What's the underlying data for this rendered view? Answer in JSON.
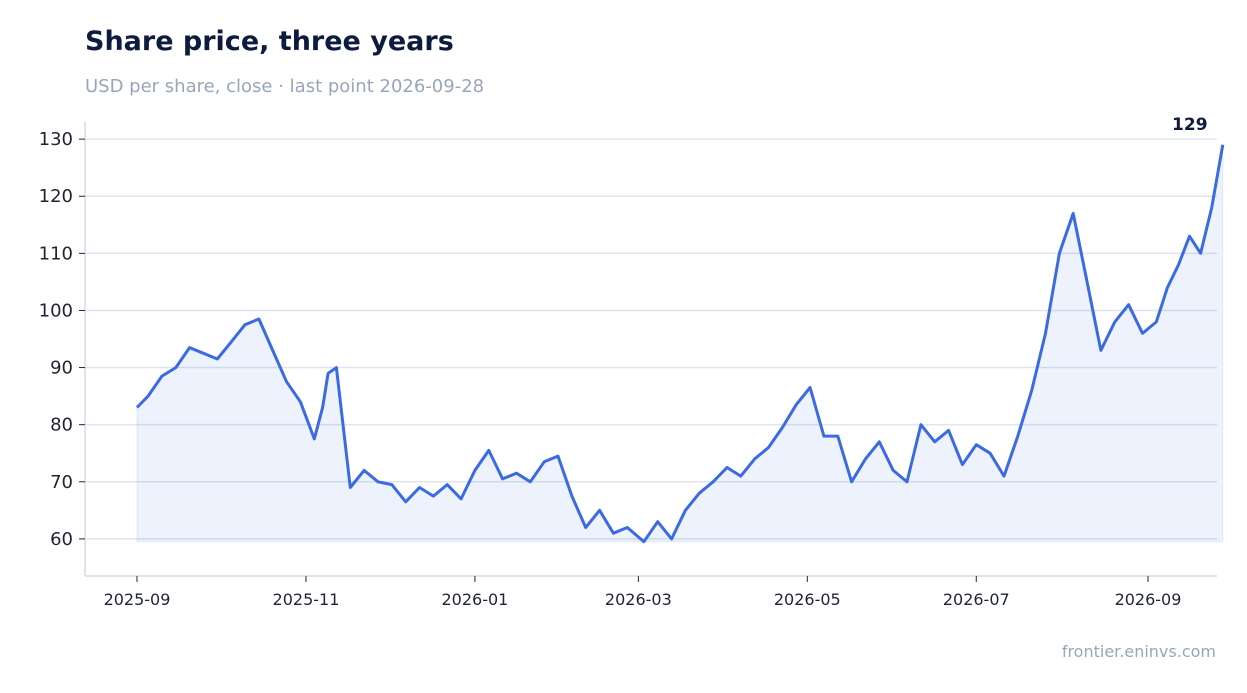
{
  "header": {
    "title": "Share price, three years",
    "subtitle": "USD per share, close · last point 2026-09-28"
  },
  "footer": {
    "source": "frontier.eninvs.com"
  },
  "colors": {
    "line": "#3b6be3",
    "fill": "#3b6be3",
    "grid": "#dfe4ef",
    "axis": "#d5dae3"
  },
  "chart_data": {
    "type": "area",
    "title": "Share price, three years",
    "subtitle": "USD per share, close · last point 2026-09-28",
    "xlabel": "",
    "ylabel": "",
    "ylim": [
      53.5,
      133
    ],
    "yticks": [
      60,
      70,
      80,
      90,
      100,
      110,
      120,
      130
    ],
    "xticks": [
      "2025-09",
      "2025-11",
      "2026-01",
      "2026-03",
      "2026-05",
      "2026-07",
      "2026-09"
    ],
    "grid": "horizontal",
    "end_label": "129",
    "series": [
      {
        "x": [
          "2025-09-01",
          "2025-09-05",
          "2025-09-10",
          "2025-09-15",
          "2025-09-20",
          "2025-09-25",
          "2025-09-30",
          "2025-10-05",
          "2025-10-10",
          "2025-10-15",
          "2025-10-20",
          "2025-10-25",
          "2025-10-30",
          "2025-11-04",
          "2025-11-07",
          "2025-11-09",
          "2025-11-12",
          "2025-11-17",
          "2025-11-22",
          "2025-11-27",
          "2025-12-02",
          "2025-12-07",
          "2025-12-12",
          "2025-12-17",
          "2025-12-22",
          "2025-12-27",
          "2026-01-01",
          "2026-01-06",
          "2026-01-11",
          "2026-01-16",
          "2026-01-21",
          "2026-01-26",
          "2026-01-31",
          "2026-02-05",
          "2026-02-10",
          "2026-02-15",
          "2026-02-20",
          "2026-02-25",
          "2026-03-03",
          "2026-03-08",
          "2026-03-13",
          "2026-03-18",
          "2026-03-23",
          "2026-03-28",
          "2026-04-02",
          "2026-04-07",
          "2026-04-12",
          "2026-04-17",
          "2026-04-22",
          "2026-04-27",
          "2026-05-02",
          "2026-05-07",
          "2026-05-12",
          "2026-05-17",
          "2026-05-22",
          "2026-05-27",
          "2026-06-01",
          "2026-06-06",
          "2026-06-11",
          "2026-06-16",
          "2026-06-21",
          "2026-06-26",
          "2026-07-01",
          "2026-07-06",
          "2026-07-11",
          "2026-07-16",
          "2026-07-21",
          "2026-07-26",
          "2026-07-31",
          "2026-08-05",
          "2026-08-10",
          "2026-08-15",
          "2026-08-20",
          "2026-08-25",
          "2026-08-30",
          "2026-09-04",
          "2026-09-08",
          "2026-09-12",
          "2026-09-16",
          "2026-09-20",
          "2026-09-24",
          "2026-09-28"
        ],
        "y": [
          83,
          85,
          88.5,
          90,
          93.5,
          92.5,
          91.5,
          94.5,
          97.5,
          98.5,
          93,
          87.5,
          84,
          77.5,
          83,
          89,
          90,
          69,
          72,
          70,
          69.5,
          66.5,
          69,
          67.5,
          69.5,
          67,
          72,
          75.5,
          70.5,
          71.5,
          70,
          73.5,
          74.5,
          67.5,
          62,
          65,
          61,
          62,
          59.5,
          63,
          60,
          65,
          68,
          70,
          72.5,
          71,
          74,
          76,
          79.5,
          83.5,
          86.5,
          78,
          78,
          70,
          74,
          77,
          72,
          70,
          80,
          77,
          79,
          73,
          76.5,
          75,
          71,
          78,
          86,
          96,
          110,
          117,
          105,
          93,
          98,
          101,
          96,
          98,
          104,
          108,
          113,
          110,
          118,
          129
        ]
      }
    ]
  }
}
